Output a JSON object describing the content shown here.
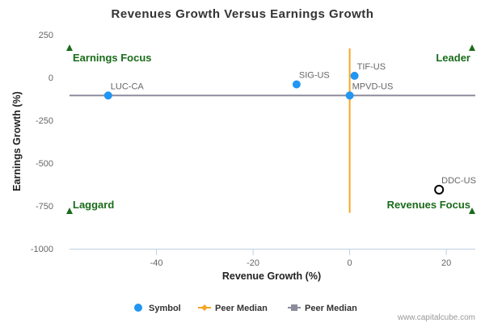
{
  "chart_data": {
    "type": "scatter",
    "title": "Revenues Growth Versus Earnings Growth",
    "xlabel": "Revenue Growth (%)",
    "ylabel": "Earnings Growth (%)",
    "xlim": [
      -58,
      26
    ],
    "ylim": [
      -1000,
      250
    ],
    "xticks": [
      -40,
      -20,
      0,
      20
    ],
    "xtick_labels": [
      "-40",
      "-20",
      "0",
      "20"
    ],
    "yticks": [
      250,
      0,
      -250,
      -500,
      -750,
      -1000
    ],
    "ytick_labels": [
      "250",
      "0",
      "-250",
      "-500",
      "-750",
      "-1000"
    ],
    "grid": false,
    "points": [
      {
        "label": "LUC-CA",
        "x": -50,
        "y": -105,
        "style": "filled"
      },
      {
        "label": "SIG-US",
        "x": -11,
        "y": -40,
        "style": "filled"
      },
      {
        "label": "TIF-US",
        "x": 1,
        "y": 10,
        "style": "filled"
      },
      {
        "label": "MPVD-US",
        "x": 0,
        "y": -105,
        "style": "filled"
      },
      {
        "label": "DDC-US",
        "x": 18.5,
        "y": -655,
        "style": "open"
      }
    ],
    "peer_median_x": 0,
    "peer_median_y": -105,
    "quadrant_labels": {
      "top_left": "Earnings Focus",
      "top_right": "Leader",
      "bottom_left": "Laggard",
      "bottom_right": "Revenues Focus"
    },
    "legend": {
      "position": "bottom-center",
      "entries": [
        {
          "name": "Symbol",
          "color": "#2196f3"
        },
        {
          "name": "Peer Median",
          "color": "#f5a623"
        },
        {
          "name": "Peer Median",
          "color": "#8c8c9c"
        }
      ]
    },
    "colors": {
      "symbol": "#2196f3",
      "x_median": "#f5a623",
      "y_median": "#8c8c9c",
      "quadrant": "#1a6b1a",
      "axis": "#c0d0e0"
    }
  },
  "credit": "www.capitalcube.com"
}
